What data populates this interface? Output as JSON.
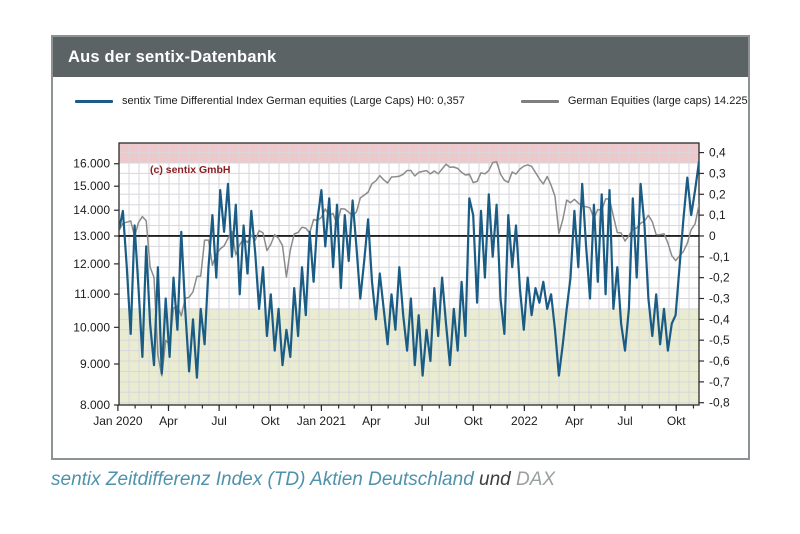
{
  "card": {
    "header": {
      "title": "Aus der sentix-Datenbank",
      "bg": "#5c6365",
      "text_color": "#ffffff"
    },
    "legend": [
      {
        "label": "sentix Time Differential Index German equities (Large Caps) H0: 0,357",
        "color": "#1a5c84"
      },
      {
        "label": "German Equities (large caps) 14.225",
        "color": "#7f7f7f"
      }
    ],
    "copyright": {
      "text": "(c) sentix GmbH",
      "color": "#8a1f24"
    }
  },
  "caption": {
    "highlight": "sentix Zeitdifferenz Index (TD) Aktien Deutschland",
    "connector": " und ",
    "suffix": "DAX"
  },
  "chart_data": {
    "type": "line",
    "title": "sentix Time Differential Index German equities vs German Equities (large caps)",
    "x_unit": "weekly data, Jan 2020 - Nov 2022",
    "x_axis": {
      "ticks": [
        {
          "label": "Jan 2020",
          "y": 2020,
          "m": 0
        },
        {
          "label": "Apr",
          "y": 2020,
          "m": 3
        },
        {
          "label": "Jul",
          "y": 2020,
          "m": 6
        },
        {
          "label": "Okt",
          "y": 2020,
          "m": 9
        },
        {
          "label": "Jan 2021",
          "y": 2021,
          "m": 0
        },
        {
          "label": "Apr",
          "y": 2021,
          "m": 3
        },
        {
          "label": "Jul",
          "y": 2021,
          "m": 6
        },
        {
          "label": "Okt",
          "y": 2021,
          "m": 9
        },
        {
          "label": "2022",
          "y": 2022,
          "m": 0
        },
        {
          "label": "Apr",
          "y": 2022,
          "m": 3
        },
        {
          "label": "Jul",
          "y": 2022,
          "m": 6
        },
        {
          "label": "Okt",
          "y": 2022,
          "m": 9
        }
      ],
      "weeks_total": 150
    },
    "left_axis": {
      "scale": "log",
      "top_value": 16982,
      "bottom_value": 8000,
      "ticks": [
        {
          "value": 16000,
          "label": "16.000"
        },
        {
          "value": 15000,
          "label": "15.000"
        },
        {
          "value": 14000,
          "label": "14.000"
        },
        {
          "value": 13000,
          "label": "13.000"
        },
        {
          "value": 12000,
          "label": "12.000"
        },
        {
          "value": 11000,
          "label": "11.000"
        },
        {
          "value": 10000,
          "label": "10.000"
        },
        {
          "value": 9000,
          "label": "9.000"
        },
        {
          "value": 8000,
          "label": "8.000"
        }
      ]
    },
    "right_axis": {
      "scale": "linear",
      "top_value": 0.446,
      "bottom_value": -0.811,
      "grid_step": 0.05,
      "ticks": [
        {
          "value": 0.4,
          "label": "0,4"
        },
        {
          "value": 0.3,
          "label": "0,3"
        },
        {
          "value": 0.2,
          "label": "0,2"
        },
        {
          "value": 0.1,
          "label": "0,1"
        },
        {
          "value": 0.0,
          "label": "0"
        },
        {
          "value": -0.1,
          "label": "-0,1"
        },
        {
          "value": -0.2,
          "label": "-0,2"
        },
        {
          "value": -0.3,
          "label": "-0,3"
        },
        {
          "value": -0.4,
          "label": "-0,4"
        },
        {
          "value": -0.5,
          "label": "-0,5"
        },
        {
          "value": -0.6,
          "label": "-0,6"
        },
        {
          "value": -0.7,
          "label": "-0,7"
        },
        {
          "value": -0.8,
          "label": "-0,8"
        }
      ]
    },
    "bands": [
      {
        "name": "upper-threshold-band",
        "axis": "right",
        "from": 0.35,
        "to": 0.446,
        "color": "#edc9cc"
      },
      {
        "name": "lower-threshold-band",
        "axis": "right",
        "from": -0.811,
        "to": -0.35,
        "color": "#e9ecd1"
      }
    ],
    "zero_line": {
      "axis": "right",
      "value": 0,
      "color": "#000000"
    },
    "grid_color": "#d7d7dd",
    "series": [
      {
        "name": "German Equities (large caps)",
        "axis": "left",
        "color": "#8b8b8b",
        "width": 1.5,
        "last_value": 14225,
        "values": [
          13219,
          13483,
          13526,
          13577,
          12982,
          13514,
          13744,
          13579,
          11890,
          11542,
          9232,
          8700,
          9633,
          9526,
          10565,
          10626,
          10336,
          10862,
          10904,
          11074,
          11574,
          11587,
          12847,
          12848,
          11950,
          12331,
          12528,
          12634,
          12920,
          13171,
          12313,
          12674,
          12901,
          12765,
          13033,
          12843,
          13203,
          13116,
          12469,
          12689,
          13051,
          12909,
          12646,
          11556,
          12480,
          13077,
          13137,
          13335,
          13299,
          13114,
          13630,
          13587,
          13719,
          14050,
          13788,
          13874,
          13433,
          14057,
          14050,
          13920,
          13786,
          13921,
          14502,
          14621,
          14749,
          15107,
          15234,
          15460,
          15280,
          15137,
          15400,
          15417,
          15438,
          15520,
          15693,
          15693,
          15448,
          15608,
          15650,
          15688,
          15540,
          15669,
          15544,
          15761,
          15977,
          15835,
          15852,
          15781,
          15610,
          15490,
          15532,
          15156,
          15206,
          15587,
          15543,
          15689,
          16054,
          16094,
          15532,
          15257,
          15170,
          15623,
          15532,
          15754,
          15885,
          15948,
          15883,
          15604,
          15319,
          15100,
          15425,
          15043,
          14567,
          13094,
          13628,
          14413,
          14306,
          14446,
          14284,
          14163,
          14142,
          14098,
          13674,
          14028,
          14002,
          14462,
          14460,
          13762,
          13126,
          13118,
          12813,
          13015,
          13254,
          13304,
          13484,
          13574,
          13796,
          13544,
          13049,
          13050,
          13088,
          12741,
          12284,
          12114,
          12273,
          12438,
          12730,
          13243,
          13459,
          14225
        ]
      },
      {
        "name": "sentix Time Differential Index German equities (Large Caps)",
        "axis": "right",
        "color": "#1a5c84",
        "width": 2.2,
        "last_value": 0.357,
        "last_value_label": "H0: 0,357",
        "values": [
          0.03,
          0.12,
          -0.15,
          -0.47,
          0.05,
          -0.25,
          -0.58,
          -0.05,
          -0.42,
          -0.62,
          -0.15,
          -0.66,
          -0.3,
          -0.58,
          -0.2,
          -0.45,
          0.02,
          -0.35,
          -0.65,
          -0.4,
          -0.68,
          -0.35,
          -0.52,
          -0.15,
          0.1,
          -0.2,
          0.22,
          0.02,
          0.25,
          -0.1,
          0.15,
          -0.28,
          0.05,
          -0.18,
          0.12,
          -0.08,
          -0.35,
          -0.15,
          -0.48,
          -0.28,
          -0.55,
          -0.35,
          -0.62,
          -0.45,
          -0.58,
          -0.25,
          -0.48,
          -0.15,
          -0.38,
          0.02,
          -0.22,
          0.08,
          0.22,
          -0.05,
          0.18,
          -0.15,
          0.15,
          -0.25,
          0.1,
          -0.12,
          0.17,
          -0.05,
          -0.3,
          -0.12,
          0.08,
          -0.22,
          -0.4,
          -0.18,
          -0.35,
          -0.52,
          -0.28,
          -0.45,
          -0.15,
          -0.38,
          -0.55,
          -0.3,
          -0.62,
          -0.38,
          -0.67,
          -0.45,
          -0.6,
          -0.25,
          -0.48,
          -0.2,
          -0.42,
          -0.62,
          -0.35,
          -0.55,
          -0.22,
          -0.48,
          0.18,
          0.1,
          -0.32,
          0.12,
          -0.2,
          0.2,
          -0.1,
          0.15,
          -0.3,
          -0.47,
          0.1,
          -0.15,
          0.05,
          -0.25,
          -0.45,
          -0.2,
          -0.38,
          -0.25,
          -0.32,
          -0.22,
          -0.35,
          -0.28,
          -0.45,
          -0.67,
          -0.52,
          -0.35,
          -0.2,
          0.12,
          -0.15,
          0.25,
          -0.05,
          -0.3,
          0.15,
          -0.22,
          0.2,
          -0.28,
          0.22,
          -0.35,
          -0.15,
          -0.42,
          -0.55,
          -0.35,
          0.18,
          -0.2,
          0.25,
          0.05,
          -0.3,
          -0.48,
          -0.28,
          -0.52,
          -0.35,
          -0.55,
          -0.42,
          -0.38,
          -0.15,
          0.08,
          0.28,
          0.1,
          0.22,
          0.357
        ]
      }
    ]
  }
}
